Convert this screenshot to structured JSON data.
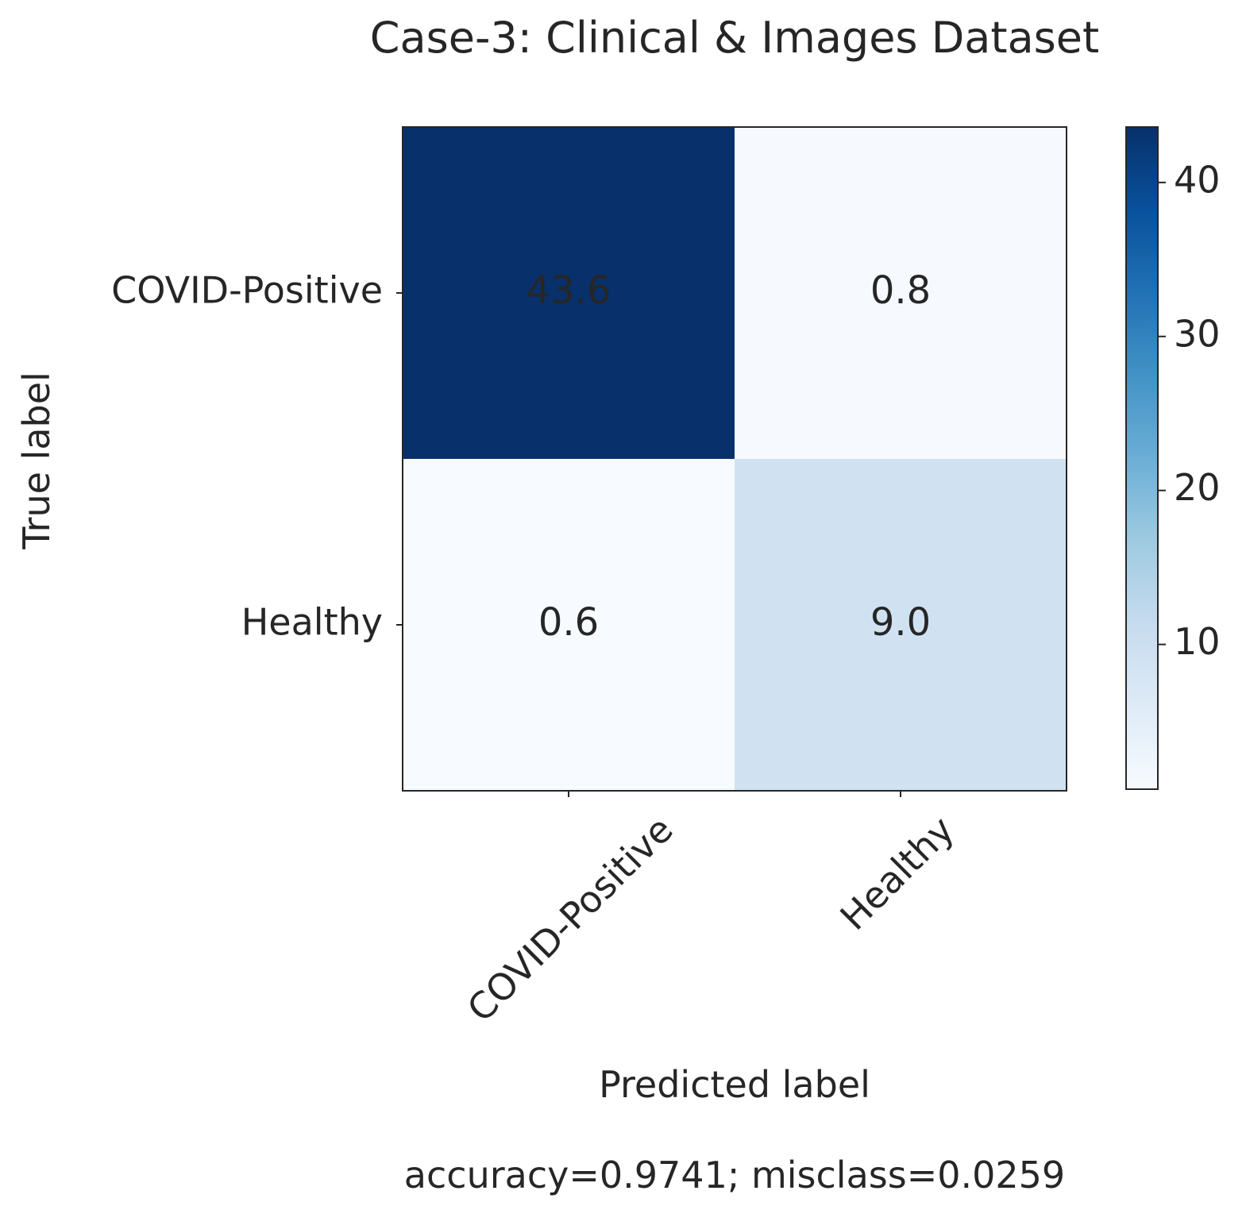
{
  "chart_data": {
    "type": "heatmap",
    "title": "Case-3: Clinical & Images Dataset",
    "xlabel": "Predicted label",
    "ylabel": "True label",
    "x_categories": [
      "COVID-Positive",
      "Healthy"
    ],
    "y_categories": [
      "COVID-Positive",
      "Healthy"
    ],
    "matrix": [
      [
        43.6,
        0.8
      ],
      [
        0.6,
        9.0
      ]
    ],
    "cell_labels": [
      [
        "43.6",
        "0.8"
      ],
      [
        "0.6",
        "9.0"
      ]
    ],
    "colormap": "Blues",
    "colorbar": {
      "range": [
        0.6,
        43.6
      ],
      "ticks": [
        10,
        20,
        30,
        40
      ],
      "tick_labels": [
        "10",
        "20",
        "30",
        "40"
      ]
    },
    "footer": "accuracy=0.9741; misclass=0.0259"
  },
  "colors": {
    "cmap_low": "#f7fbff",
    "cmap_high": "#08306b",
    "text_dark": "#262626",
    "text_light": "#ffffff"
  }
}
